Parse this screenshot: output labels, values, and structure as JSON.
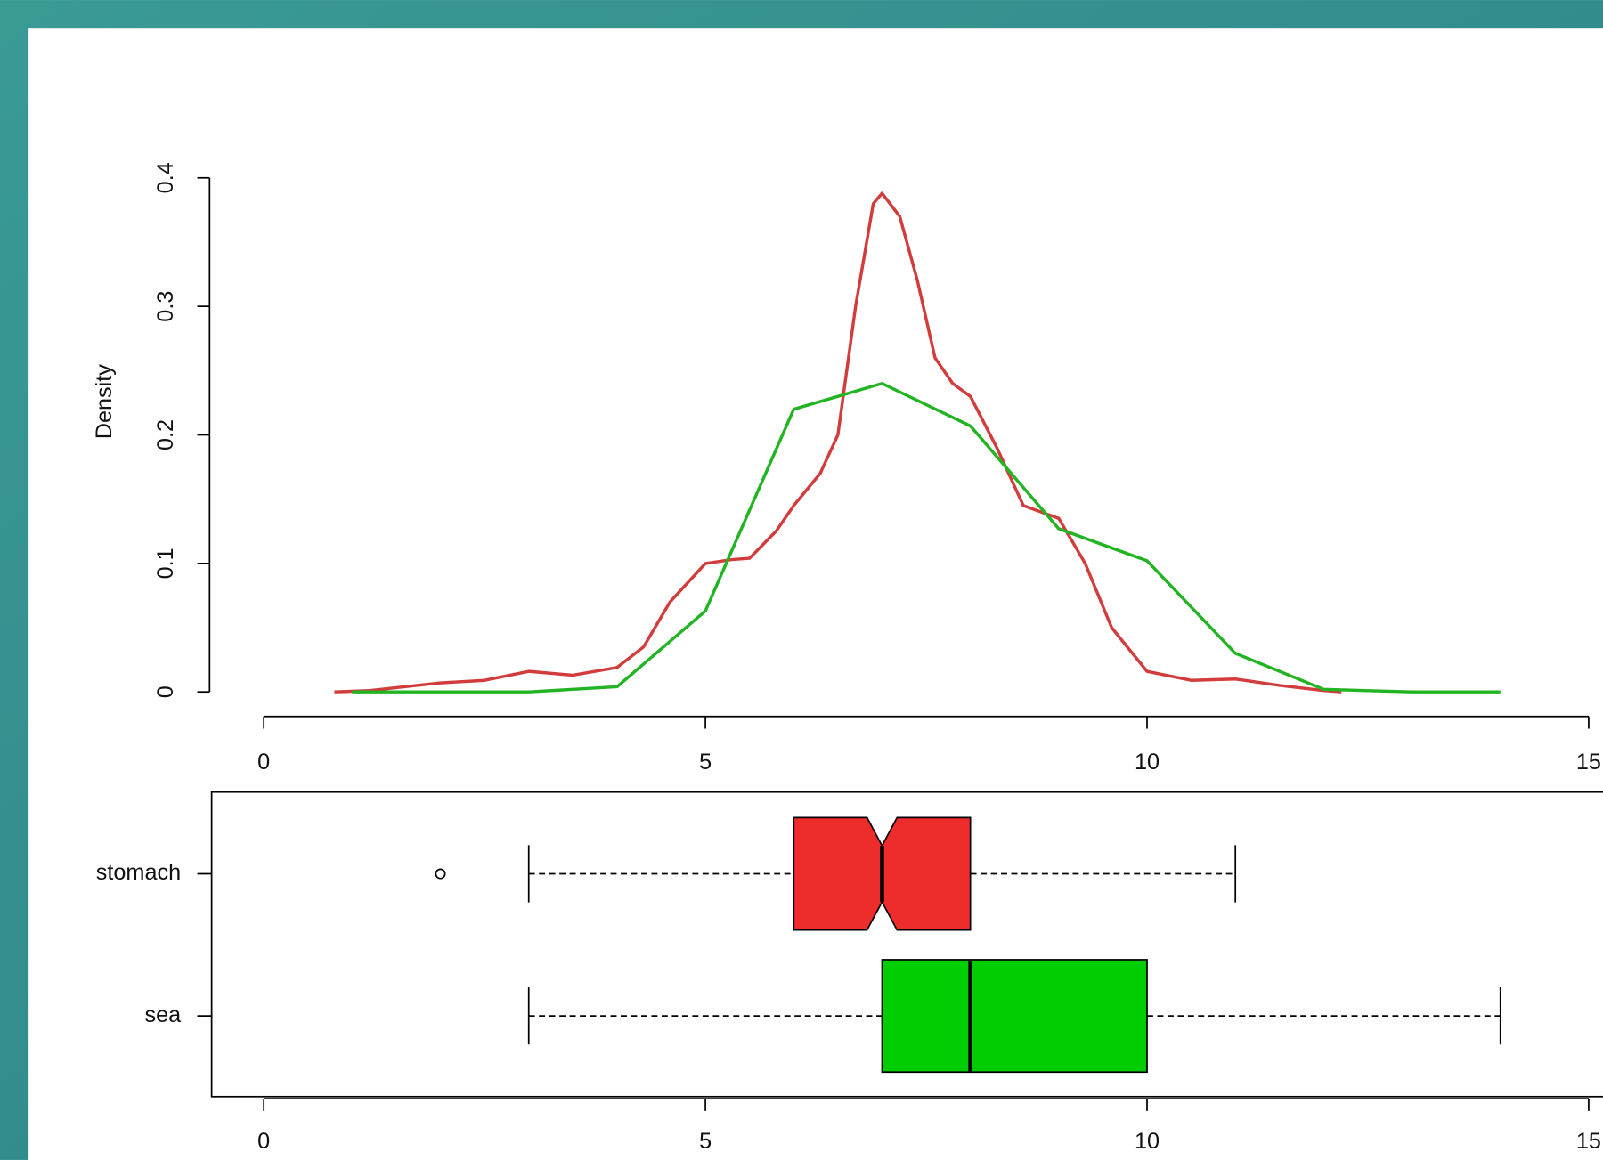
{
  "chart_data": [
    {
      "type": "line",
      "ylabel": "Density",
      "xlim": [
        0,
        15
      ],
      "xticks": [
        0,
        5,
        10,
        15
      ],
      "ylim": [
        0,
        0.4
      ],
      "yticks": [
        0.0,
        0.1,
        0.2,
        0.3,
        0.4
      ],
      "series": [
        {
          "name": "stomach",
          "color": "#d23c3c",
          "x": [
            0.8,
            1.2,
            2.0,
            2.5,
            3.0,
            3.5,
            4.0,
            4.3,
            4.6,
            5.0,
            5.3,
            5.5,
            5.8,
            6.0,
            6.3,
            6.5,
            6.7,
            6.9,
            7.0,
            7.2,
            7.4,
            7.6,
            7.8,
            8.0,
            8.3,
            8.6,
            9.0,
            9.3,
            9.6,
            10.0,
            10.5,
            11.0,
            11.5,
            12.0,
            12.2
          ],
          "values": [
            0,
            0.001,
            0.007,
            0.009,
            0.016,
            0.013,
            0.019,
            0.035,
            0.07,
            0.1,
            0.103,
            0.104,
            0.125,
            0.145,
            0.17,
            0.2,
            0.3,
            0.38,
            0.388,
            0.37,
            0.32,
            0.26,
            0.24,
            0.23,
            0.19,
            0.145,
            0.135,
            0.1,
            0.05,
            0.016,
            0.009,
            0.01,
            0.005,
            0.001,
            0
          ]
        },
        {
          "name": "sea",
          "color": "#22b422",
          "x": [
            1,
            2,
            3,
            4,
            5,
            6,
            7,
            8,
            9,
            10,
            11,
            12,
            13,
            14
          ],
          "values": [
            0,
            0,
            0,
            0.004,
            0.063,
            0.22,
            0.24,
            0.207,
            0.127,
            0.102,
            0.03,
            0.002,
            0,
            0
          ]
        }
      ]
    },
    {
      "type": "boxplot",
      "horizontal": true,
      "xlim": [
        0,
        15
      ],
      "xticks": [
        0,
        5,
        10,
        15
      ],
      "series": [
        {
          "name": "stomach",
          "color": "#ee2c2c",
          "whislo": 3,
          "q1": 6,
          "med": 7,
          "q3": 8,
          "whishi": 11,
          "outliers": [
            2
          ],
          "notch": [
            6.83,
            7.17
          ]
        },
        {
          "name": "sea",
          "color": "#00cd00",
          "whislo": 3,
          "q1": 7,
          "med": 8,
          "q3": 10,
          "whishi": 14
        }
      ]
    }
  ]
}
